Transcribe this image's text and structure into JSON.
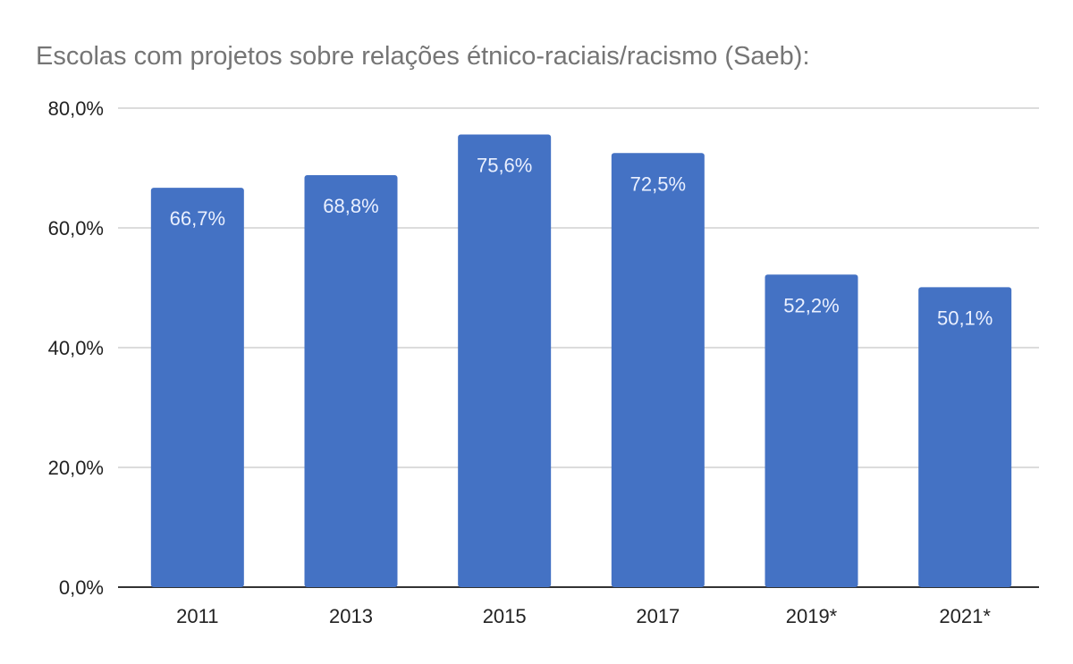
{
  "chart_data": {
    "type": "bar",
    "title": "Escolas com projetos sobre relações étnico-raciais/racismo (Saeb):",
    "categories": [
      "2011",
      "2013",
      "2015",
      "2017",
      "2019*",
      "2021*"
    ],
    "values": [
      66.7,
      68.8,
      75.6,
      72.5,
      52.2,
      50.1
    ],
    "data_labels": [
      "66,7%",
      "68,8%",
      "75,6%",
      "72,5%",
      "52,2%",
      "50,1%"
    ],
    "xlabel": "",
    "ylabel": "",
    "ylim": [
      0,
      80
    ],
    "yticks": [
      0,
      20,
      40,
      60,
      80
    ],
    "ytick_labels": [
      "0,0%",
      "20,0%",
      "40,0%",
      "60,0%",
      "80,0%"
    ],
    "grid": true,
    "legend": "none",
    "bar_color": "#4472c4"
  }
}
